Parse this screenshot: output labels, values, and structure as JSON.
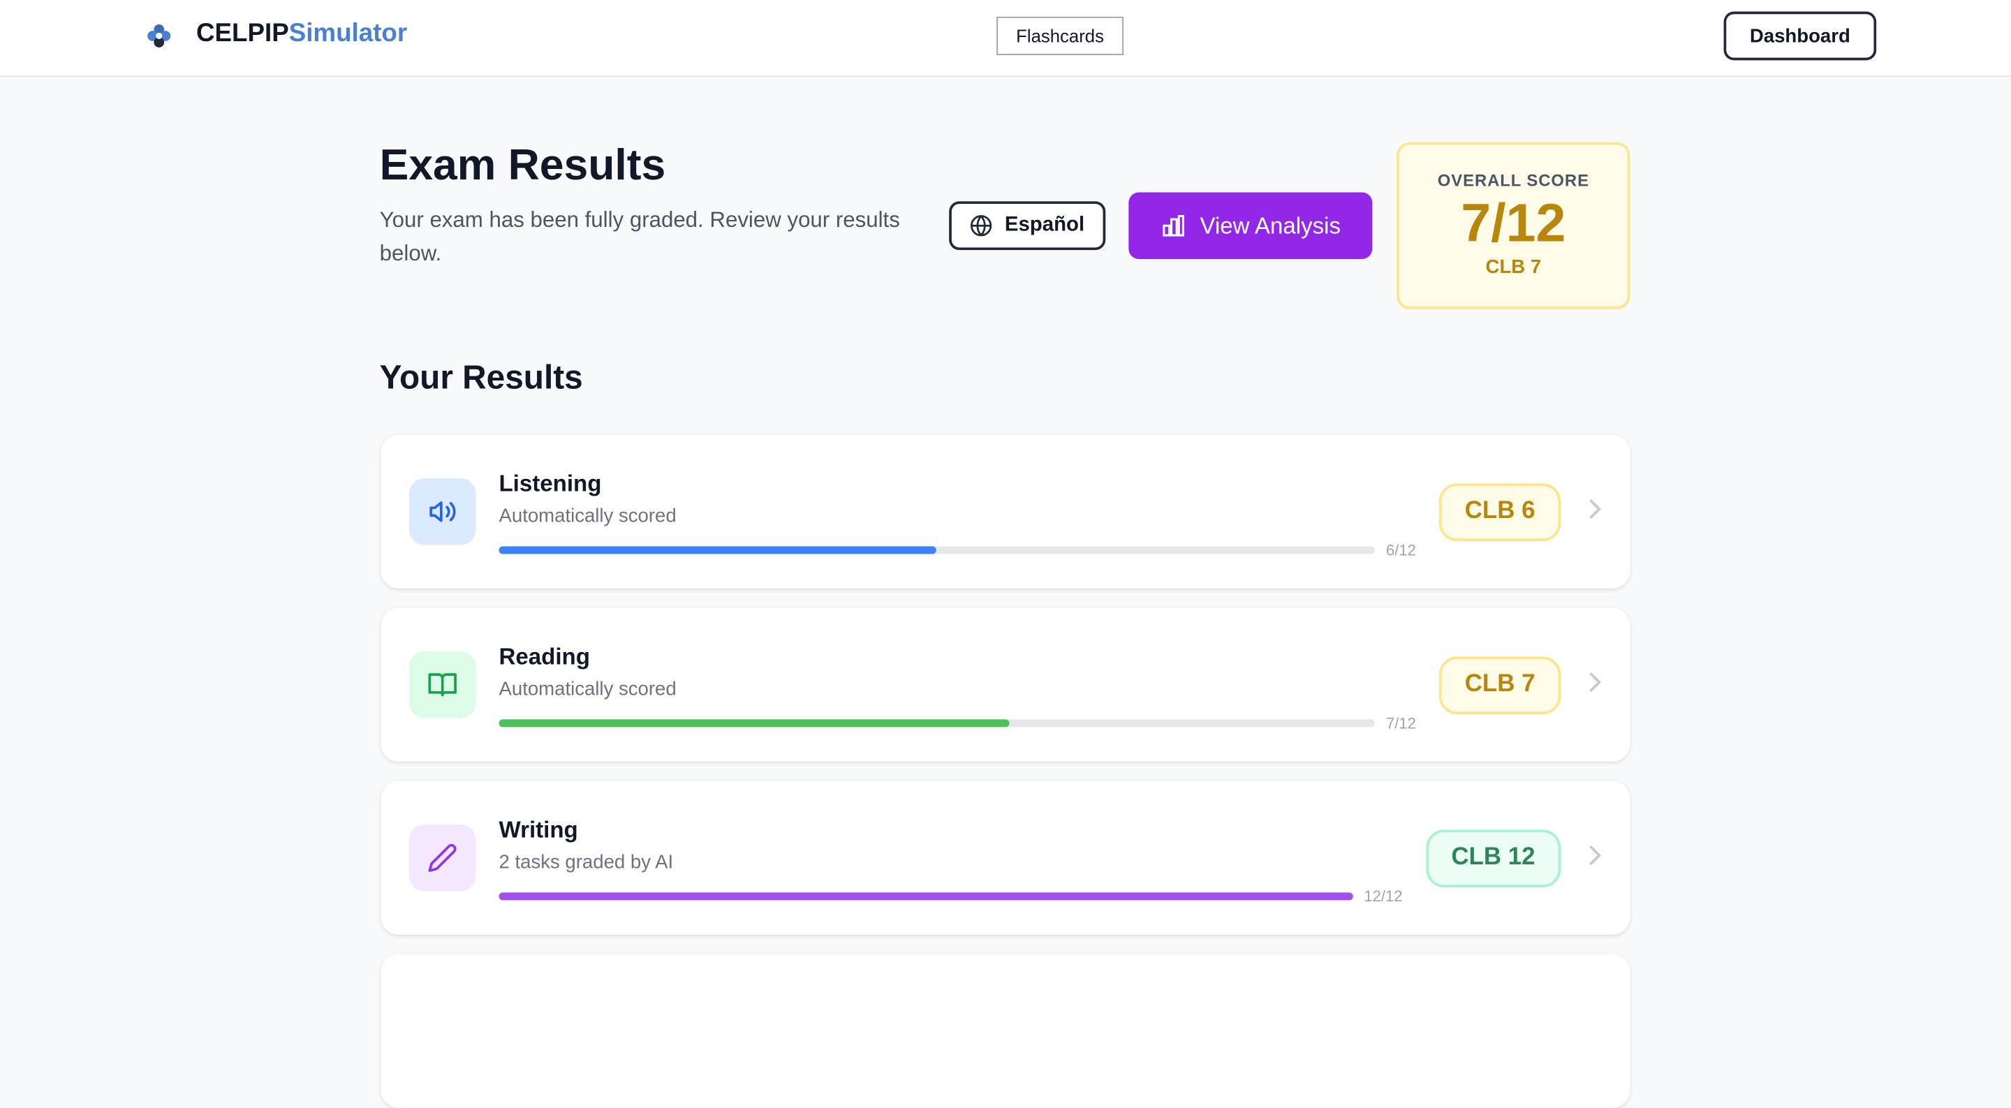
{
  "header": {
    "brand": {
      "primary": "CELPIP",
      "secondary": "Simulator"
    },
    "nav": {
      "flashcards": "Flashcards",
      "dashboard": "Dashboard"
    }
  },
  "page": {
    "title": "Exam Results",
    "subtitle": "Your exam has been fully graded. Review your results below.",
    "language_button": "Español",
    "analysis_button": "View Analysis",
    "overall": {
      "label": "OVERALL SCORE",
      "score": "7/12",
      "clb": "CLB 7"
    }
  },
  "results": {
    "heading": "Your Results",
    "items": [
      {
        "title": "Listening",
        "subtitle": "Automatically scored",
        "score": 6,
        "max": 12,
        "score_label": "6/12",
        "clb": "CLB 6"
      },
      {
        "title": "Reading",
        "subtitle": "Automatically scored",
        "score": 7,
        "max": 12,
        "score_label": "7/12",
        "clb": "CLB 7"
      },
      {
        "title": "Writing",
        "subtitle": "2 tasks graded by AI",
        "score": 12,
        "max": 12,
        "score_label": "12/12",
        "clb": "CLB 12"
      }
    ]
  }
}
